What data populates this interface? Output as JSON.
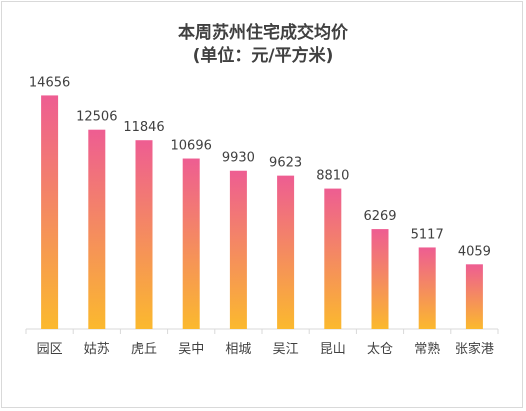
{
  "chart_data": {
    "type": "bar",
    "title": "本周苏州住宅成交均价",
    "subtitle": "(单位：元/平方米)",
    "categories": [
      "园区",
      "姑苏",
      "虎丘",
      "吴中",
      "相城",
      "吴江",
      "昆山",
      "太仓",
      "常熟",
      "张家港"
    ],
    "values": [
      14656,
      12506,
      11846,
      10696,
      9930,
      9623,
      8810,
      6269,
      5117,
      4059
    ],
    "ylim": [
      0,
      16000
    ],
    "grid": false,
    "legend": "none",
    "colors": {
      "bar_top": "#ee5d92",
      "bar_bottom": "#fbb92e",
      "text": "#404040",
      "axis": "#d9d9d9"
    }
  }
}
